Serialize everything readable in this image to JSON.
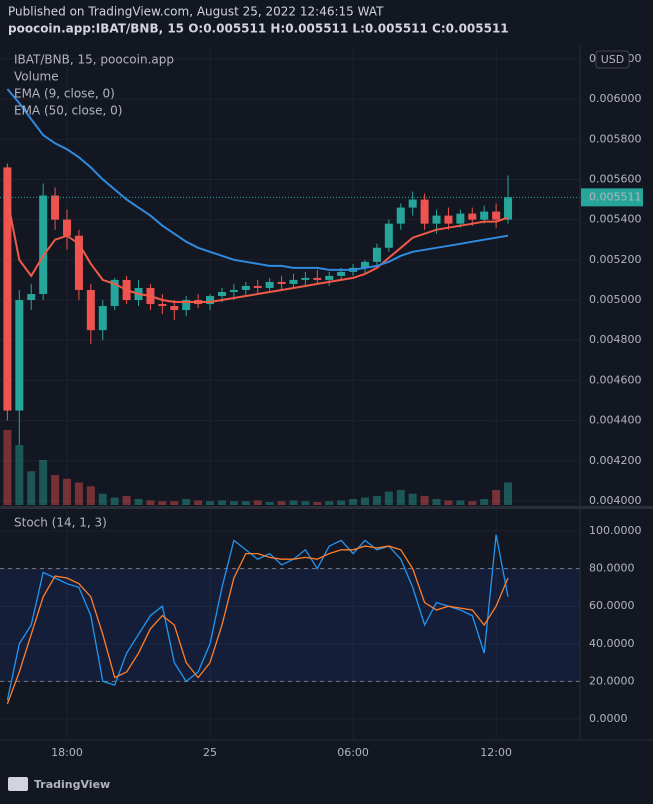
{
  "header": {
    "published": "Published on TradingView.com, August 25, 2022 12:46:15 WAT",
    "ohlc": "poocoin.app:IBAT/BNB, 15  O:0.005511 H:0.005511 L:0.005511 C:0.005511"
  },
  "currency": "USD",
  "footer": {
    "brand": "TradingView"
  },
  "chart_data": [
    {
      "type": "candlestick",
      "categories": [
        null,
        null,
        null,
        null,
        null,
        "18:00",
        null,
        null,
        null,
        null,
        null,
        null,
        null,
        null,
        null,
        null,
        null,
        "25",
        null,
        null,
        null,
        null,
        null,
        null,
        null,
        null,
        null,
        null,
        null,
        "06:00",
        null,
        null,
        null,
        null,
        null,
        null,
        null,
        null,
        null,
        null,
        null,
        "12:00",
        null
      ],
      "up_color": "#26a69a",
      "down_color": "#ef5350",
      "ylim": [
        0.00398,
        0.006269
      ],
      "yticks": [
        {
          "value": 0.004,
          "label": "0.004000"
        },
        {
          "value": 0.0042,
          "label": "0.004200"
        },
        {
          "value": 0.0044,
          "label": "0.004400"
        },
        {
          "value": 0.0046,
          "label": "0.004600"
        },
        {
          "value": 0.0048,
          "label": "0.004800"
        },
        {
          "value": 0.005,
          "label": "0.005000"
        },
        {
          "value": 0.0052,
          "label": "0.005200"
        },
        {
          "value": 0.0054,
          "label": "0.005400"
        },
        {
          "value": 0.0056,
          "label": "0.005600"
        },
        {
          "value": 0.0058,
          "label": "0.005800"
        },
        {
          "value": 0.006,
          "label": "0.006000"
        },
        {
          "value": 0.0062,
          "label": "0.006200"
        }
      ],
      "grid": true,
      "last_price": {
        "value": 0.005511,
        "label": "0.005511"
      },
      "series": [
        {
          "name": "IBAT/BNB, 15, poocoin.app",
          "open": [
            0.00566,
            0.00445,
            0.005,
            0.00503,
            0.00552,
            0.0054,
            0.00532,
            0.00505,
            0.00485,
            0.00497,
            0.0051,
            0.005,
            0.00506,
            0.00498,
            0.00497,
            0.00495,
            0.005,
            0.00498,
            0.00502,
            0.00504,
            0.00505,
            0.00507,
            0.00506,
            0.00509,
            0.00508,
            0.0051,
            0.00511,
            0.0051,
            0.00512,
            0.00514,
            0.00516,
            0.00519,
            0.00526,
            0.00538,
            0.00546,
            0.0055,
            0.00538,
            0.00542,
            0.00538,
            0.00543,
            0.0054,
            0.00544,
            0.0054
          ],
          "high": [
            0.00568,
            0.00505,
            0.00508,
            0.00558,
            0.00556,
            0.00545,
            0.00535,
            0.00508,
            0.005,
            0.00511,
            0.00512,
            0.0051,
            0.00508,
            0.00503,
            0.005,
            0.00502,
            0.00503,
            0.00503,
            0.00506,
            0.00508,
            0.00509,
            0.0051,
            0.00511,
            0.00512,
            0.00513,
            0.00514,
            0.00515,
            0.00514,
            0.00516,
            0.00518,
            0.0052,
            0.00528,
            0.0054,
            0.00548,
            0.00554,
            0.00553,
            0.00545,
            0.00546,
            0.00545,
            0.00546,
            0.00547,
            0.00548,
            0.00562
          ],
          "low": [
            0.0044,
            0.00428,
            0.00495,
            0.005,
            0.00535,
            0.00525,
            0.005,
            0.00478,
            0.0048,
            0.00495,
            0.00498,
            0.00497,
            0.00495,
            0.00493,
            0.0049,
            0.00492,
            0.00496,
            0.00495,
            0.00499,
            0.005,
            0.00502,
            0.00503,
            0.00504,
            0.00505,
            0.00506,
            0.00507,
            0.00508,
            0.00507,
            0.0051,
            0.00512,
            0.00513,
            0.00517,
            0.00524,
            0.00535,
            0.00542,
            0.00535,
            0.00533,
            0.00535,
            0.00536,
            0.00537,
            0.00538,
            0.00536,
            0.00538
          ],
          "close": [
            0.00445,
            0.005,
            0.00503,
            0.00552,
            0.0054,
            0.00532,
            0.00505,
            0.00485,
            0.00497,
            0.0051,
            0.005,
            0.00506,
            0.00498,
            0.00497,
            0.00495,
            0.005,
            0.00498,
            0.00502,
            0.00504,
            0.00505,
            0.00507,
            0.00506,
            0.00509,
            0.00508,
            0.0051,
            0.00511,
            0.0051,
            0.00512,
            0.00514,
            0.00516,
            0.00519,
            0.00526,
            0.00538,
            0.00546,
            0.0055,
            0.00538,
            0.00542,
            0.00538,
            0.00543,
            0.0054,
            0.00544,
            0.0054,
            0.005511
          ]
        },
        {
          "name": "Volume",
          "values": [
            100,
            80,
            45,
            60,
            40,
            35,
            30,
            25,
            15,
            10,
            12,
            8,
            6,
            5,
            5,
            8,
            6,
            5,
            6,
            5,
            5,
            6,
            4,
            5,
            6,
            5,
            4,
            5,
            6,
            8,
            10,
            12,
            18,
            20,
            15,
            12,
            8,
            6,
            6,
            5,
            8,
            20,
            30
          ]
        },
        {
          "name": "EMA (9, close, 0)",
          "color": "#f05a47",
          "values": [
            0.0055,
            0.0052,
            0.00512,
            0.00522,
            0.0053,
            0.00532,
            0.00528,
            0.00518,
            0.0051,
            0.00508,
            0.00505,
            0.00503,
            0.00502,
            0.005,
            0.00499,
            0.00499,
            0.00499,
            0.00499,
            0.005,
            0.00501,
            0.00502,
            0.00503,
            0.00504,
            0.00505,
            0.00506,
            0.00507,
            0.00508,
            0.00509,
            0.0051,
            0.00511,
            0.00513,
            0.00516,
            0.00521,
            0.00526,
            0.00531,
            0.00533,
            0.00535,
            0.00536,
            0.00537,
            0.00538,
            0.00539,
            0.00539,
            0.00541
          ]
        },
        {
          "name": "EMA (50, close, 0)",
          "color": "#2f8ae0",
          "values": [
            0.00605,
            0.00598,
            0.0059,
            0.00582,
            0.00578,
            0.00575,
            0.00571,
            0.00566,
            0.0056,
            0.00555,
            0.0055,
            0.00546,
            0.00542,
            0.00537,
            0.00533,
            0.00529,
            0.00526,
            0.00524,
            0.00522,
            0.0052,
            0.00519,
            0.00518,
            0.00517,
            0.00517,
            0.00516,
            0.00516,
            0.00516,
            0.00515,
            0.00515,
            0.00515,
            0.00516,
            0.00517,
            0.00519,
            0.00522,
            0.00524,
            0.00525,
            0.00526,
            0.00527,
            0.00528,
            0.00529,
            0.0053,
            0.00531,
            0.00532
          ]
        }
      ]
    },
    {
      "type": "line",
      "title": "Stoch (14, 1, 3)",
      "ylim": [
        -11.2,
        111.2
      ],
      "yticks": [
        {
          "value": 0,
          "label": "0.0000"
        },
        {
          "value": 20,
          "label": "20.0000"
        },
        {
          "value": 40,
          "label": "40.0000"
        },
        {
          "value": 60,
          "label": "60.0000"
        },
        {
          "value": 80,
          "label": "80.0000"
        },
        {
          "value": 100,
          "label": "100.0000"
        }
      ],
      "bands": [
        20,
        80
      ],
      "series": [
        {
          "name": "%K",
          "color": "#2196f3",
          "values": [
            10,
            40,
            50,
            78,
            75,
            72,
            70,
            55,
            20,
            18,
            35,
            45,
            55,
            60,
            30,
            20,
            25,
            40,
            70,
            95,
            90,
            85,
            88,
            82,
            85,
            90,
            80,
            92,
            95,
            88,
            95,
            90,
            92,
            85,
            70,
            50,
            62,
            60,
            58,
            55,
            35,
            98,
            65
          ]
        },
        {
          "name": "%D",
          "color": "#ff7f2a",
          "values": [
            8,
            25,
            45,
            65,
            76,
            75,
            72,
            65,
            45,
            22,
            25,
            35,
            48,
            55,
            50,
            30,
            22,
            30,
            50,
            75,
            88,
            88,
            86,
            85,
            85,
            86,
            85,
            88,
            90,
            90,
            92,
            91,
            92,
            90,
            80,
            62,
            58,
            60,
            59,
            58,
            50,
            60,
            75
          ]
        }
      ]
    }
  ]
}
